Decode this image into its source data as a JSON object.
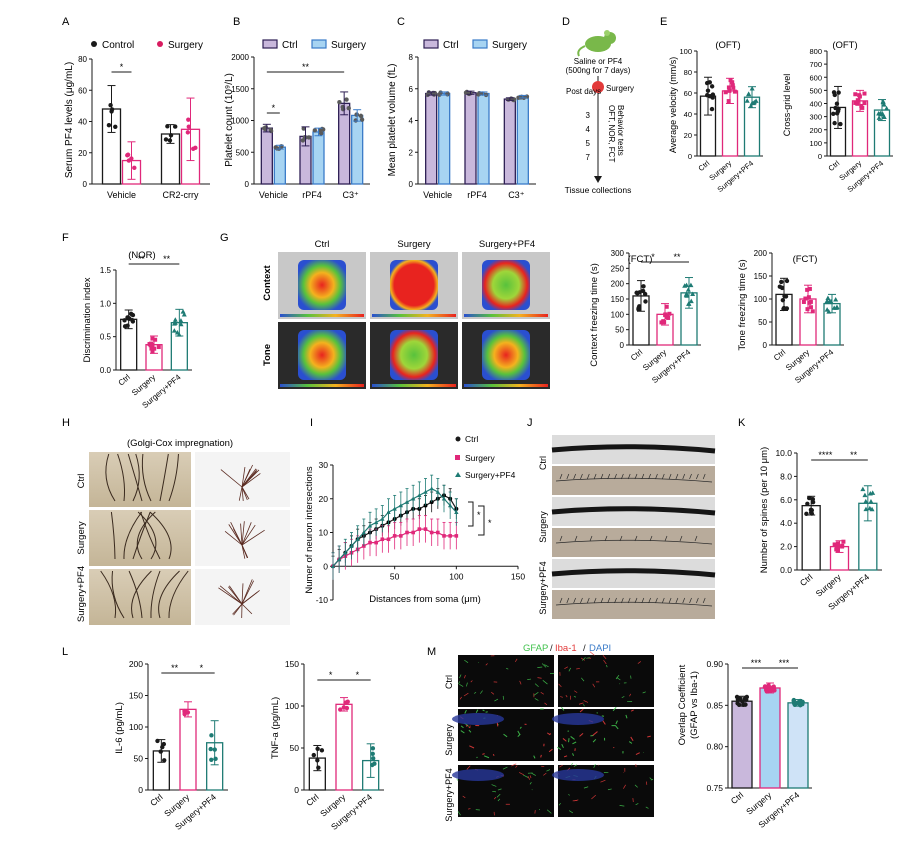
{
  "colors": {
    "ctrl": "#1a1a1a",
    "surgery": "#d81b60",
    "pf4": "#1e7b74",
    "ctrlFill": "#c9b8dc",
    "surgFill": "#a7d4f2",
    "magenta": "#e0287a",
    "teal": "#1e7b74",
    "heatRed": "#e8231f",
    "heatGreen": "#58c23c",
    "heatBlue": "#2a4fd0",
    "tissueBg": "#b8ab9b",
    "fluorGreen": "#41c24d",
    "fluorRed": "#e23a3a"
  },
  "labels": {
    "A": "A",
    "B": "B",
    "C": "C",
    "D": "D",
    "E": "E",
    "F": "F",
    "G": "G",
    "H": "H",
    "I": "I",
    "J": "J",
    "K": "K",
    "L": "L",
    "M": "M"
  },
  "panelA": {
    "legend": {
      "control": "Control",
      "surgery": "Surgery"
    },
    "ylabel": "Serum PF4 levels (μg/mL)",
    "sig": "*",
    "chart_data": {
      "type": "bar",
      "categories": [
        "Vehicle",
        "CR2-crry"
      ],
      "series": [
        {
          "name": "Control",
          "values": [
            48,
            32
          ],
          "sd": [
            15,
            6
          ]
        },
        {
          "name": "Surgery",
          "values": [
            15,
            35
          ],
          "sd": [
            12,
            20
          ]
        }
      ],
      "yticks": [
        "0",
        "20",
        "40",
        "60",
        "80"
      ],
      "ylim": [
        0,
        80
      ]
    }
  },
  "panelB": {
    "legend": {
      "ctrl": "Ctrl",
      "surgery": "Surgery"
    },
    "ylabel": "Platelet count (10⁹/L)",
    "sig1": "*",
    "sig2": "**",
    "chart_data": {
      "type": "bar",
      "categories": [
        "Vehicle",
        "rPF4",
        "C3⁺"
      ],
      "series": [
        {
          "name": "Ctrl",
          "values": [
            880,
            750,
            1270
          ],
          "sd": [
            60,
            150,
            180
          ]
        },
        {
          "name": "Surgery",
          "values": [
            580,
            820,
            1080
          ],
          "sd": [
            30,
            60,
            90
          ]
        }
      ],
      "yticks": [
        "0",
        "500",
        "1000",
        "1500",
        "2000"
      ],
      "ylim": [
        0,
        2000
      ]
    }
  },
  "panelC": {
    "legend": {
      "ctrl": "Ctrl",
      "surgery": "Surgery"
    },
    "ylabel": "Mean platelet volume (fL)",
    "chart_data": {
      "type": "bar",
      "categories": [
        "Vehicle",
        "rPF4",
        "C3⁺"
      ],
      "series": [
        {
          "name": "Ctrl",
          "values": [
            5.7,
            5.75,
            5.35
          ],
          "sd": [
            0.1,
            0.1,
            0.08
          ]
        },
        {
          "name": "Surgery",
          "values": [
            5.7,
            5.7,
            5.5
          ],
          "sd": [
            0.1,
            0.1,
            0.08
          ]
        }
      ],
      "yticks": [
        "0",
        "2",
        "4",
        "6",
        "8"
      ],
      "ylim": [
        0,
        8
      ]
    }
  },
  "panelD": {
    "t1": "Saline or PF4",
    "t2": "(500ng for 7 days)",
    "surgery": "Surgery",
    "postdays": "Post days",
    "days": [
      "3",
      "4",
      "5",
      "7"
    ],
    "tests": "OFT, NOR, FCT",
    "tests2": "Behavior tests",
    "collect": "Tissue collections"
  },
  "panelE1": {
    "title": "(OFT)",
    "ylabel": "Average velocity (mm/s)",
    "chart_data": {
      "type": "bar",
      "categories": [
        "Ctrl",
        "Surgery",
        "Surgery+PF4"
      ],
      "values": [
        57,
        62,
        56
      ],
      "sd": [
        18,
        12,
        10
      ],
      "yticks": [
        "0",
        "20",
        "40",
        "60",
        "80",
        "100"
      ],
      "ylim": [
        0,
        100
      ]
    }
  },
  "panelE2": {
    "title": "(OFT)",
    "ylabel": "Cross-grid level",
    "chart_data": {
      "type": "bar",
      "categories": [
        "Ctrl",
        "Surgery",
        "Surgery+PF4"
      ],
      "values": [
        370,
        420,
        350
      ],
      "sd": [
        160,
        80,
        80
      ],
      "yticks": [
        "0",
        "100",
        "200",
        "300",
        "400",
        "500",
        "600",
        "700",
        "800"
      ],
      "ylim": [
        0,
        800
      ]
    }
  },
  "panelF": {
    "title": "(NOR)",
    "ylabel": "Discrimination index",
    "sig1": "**",
    "sig2": "**",
    "chart_data": {
      "type": "bar",
      "categories": [
        "Ctrl",
        "Surgery",
        "Surgery+PF4"
      ],
      "values": [
        0.76,
        0.38,
        0.71
      ],
      "sd": [
        0.14,
        0.13,
        0.2
      ],
      "yticks": [
        "0.0",
        "0.5",
        "1.0",
        "1.5"
      ],
      "ylim": [
        0,
        1.5
      ]
    }
  },
  "panelG": {
    "cols": [
      "Ctrl",
      "Surgery",
      "Surgery+PF4"
    ],
    "rows": [
      "Context",
      "Tone"
    ]
  },
  "panelG1": {
    "title": "(FCT)",
    "ylabel": "Context freezing time (s)",
    "sig1": "*",
    "sig2": "**",
    "chart_data": {
      "type": "bar",
      "categories": [
        "Ctrl",
        "Surgery",
        "Surgery+PF4"
      ],
      "values": [
        160,
        100,
        170
      ],
      "sd": [
        50,
        35,
        50
      ],
      "yticks": [
        "0",
        "50",
        "100",
        "150",
        "200",
        "250",
        "300"
      ],
      "ylim": [
        0,
        300
      ]
    }
  },
  "panelG2": {
    "title": "(FCT)",
    "ylabel": "Tone freezing time (s)",
    "chart_data": {
      "type": "bar",
      "categories": [
        "Ctrl",
        "Surgery",
        "Surgery+PF4"
      ],
      "values": [
        110,
        100,
        90
      ],
      "sd": [
        35,
        30,
        20
      ],
      "yticks": [
        "0",
        "50",
        "100",
        "150",
        "200"
      ],
      "ylim": [
        0,
        200
      ]
    }
  },
  "panelH": {
    "title": "(Golgi-Cox impregnation)",
    "rows": [
      "Ctrl",
      "Surgery",
      "Surgery+PF4"
    ]
  },
  "panelI": {
    "xlabel": "Distances from soma (μm)",
    "ylabel": "Numer of neuron intersections",
    "legend": [
      "Ctrl",
      "Surgery",
      "Surgery+PF4"
    ],
    "sig": "*",
    "chart_data": {
      "type": "line",
      "x": [
        0,
        5,
        10,
        15,
        20,
        25,
        30,
        35,
        40,
        45,
        50,
        55,
        60,
        65,
        70,
        75,
        80,
        85,
        90,
        95,
        100
      ],
      "series": [
        {
          "name": "Ctrl",
          "values": [
            0,
            2,
            4,
            6,
            8,
            9,
            10,
            11,
            12,
            13,
            14,
            15,
            16,
            17,
            17,
            18,
            19,
            20,
            21,
            20,
            17
          ],
          "sd": 3
        },
        {
          "name": "Surgery",
          "values": [
            0,
            2,
            3,
            4,
            5,
            6,
            7,
            7,
            8,
            8,
            9,
            9,
            10,
            10,
            11,
            11,
            10,
            10,
            9,
            9,
            9
          ],
          "sd": 4
        },
        {
          "name": "Surgery+PF4",
          "values": [
            0,
            2,
            4,
            6,
            8,
            10,
            12,
            13,
            14,
            16,
            17,
            18,
            19,
            20,
            21,
            22,
            23,
            22,
            20,
            18,
            16
          ],
          "sd": 4
        }
      ],
      "xticks": [
        "50",
        "100",
        "150"
      ],
      "yticks": [
        "-10",
        "0",
        "10",
        "20",
        "30"
      ],
      "xlim": [
        0,
        150
      ],
      "ylim": [
        -10,
        30
      ]
    }
  },
  "panelJ": {
    "rows": [
      "Ctrl",
      "Surgery",
      "Surgery+PF4"
    ]
  },
  "panelK": {
    "ylabel": "Number of spines (per 10 μm)",
    "sig1": "****",
    "sig2": "**",
    "chart_data": {
      "type": "bar",
      "categories": [
        "Ctrl",
        "Surgery",
        "Surgery+PF4"
      ],
      "values": [
        5.5,
        2.0,
        5.7
      ],
      "sd": [
        0.8,
        0.5,
        1.5
      ],
      "yticks": [
        "0.0",
        "2.0",
        "4.0",
        "6.0",
        "8.0",
        "10.0"
      ],
      "ylim": [
        0,
        10
      ]
    }
  },
  "panelL1": {
    "ylabel": "IL-6 (pg/mL)",
    "sig1": "**",
    "sig2": "*",
    "chart_data": {
      "type": "bar",
      "categories": [
        "Ctrl",
        "Surgery",
        "Surgery+PF4"
      ],
      "values": [
        62,
        128,
        75
      ],
      "sd": [
        18,
        12,
        35
      ],
      "yticks": [
        "0",
        "50",
        "100",
        "150",
        "200"
      ],
      "ylim": [
        0,
        200
      ]
    }
  },
  "panelL2": {
    "ylabel": "TNF-a (pg/mL)",
    "sig1": "*",
    "sig2": "*",
    "chart_data": {
      "type": "bar",
      "categories": [
        "Ctrl",
        "Surgery",
        "Surgery+PF4"
      ],
      "values": [
        38,
        102,
        35
      ],
      "sd": [
        15,
        8,
        20
      ],
      "yticks": [
        "0",
        "50",
        "100",
        "150"
      ],
      "ylim": [
        0,
        150
      ]
    }
  },
  "panelM": {
    "gfap": "GFAP",
    "iba": "Iba-1",
    "dapi": "DAPI",
    "rows": [
      "Ctrl",
      "Surgery",
      "Surgery+PF4"
    ],
    "ylabel1": "Overlap Coefficient",
    "ylabel2": "(GFAP vs Iba-1)",
    "sig1": "***",
    "sig2": "***",
    "chart_data": {
      "type": "bar",
      "categories": [
        "Ctrl",
        "Surgery",
        "Surgery+PF4"
      ],
      "values": [
        0.855,
        0.871,
        0.853
      ],
      "sd": [
        0.006,
        0.006,
        0.004
      ],
      "yticks": [
        "0.75",
        "0.80",
        "0.85",
        "0.90"
      ],
      "ylim": [
        0.75,
        0.9
      ]
    }
  }
}
